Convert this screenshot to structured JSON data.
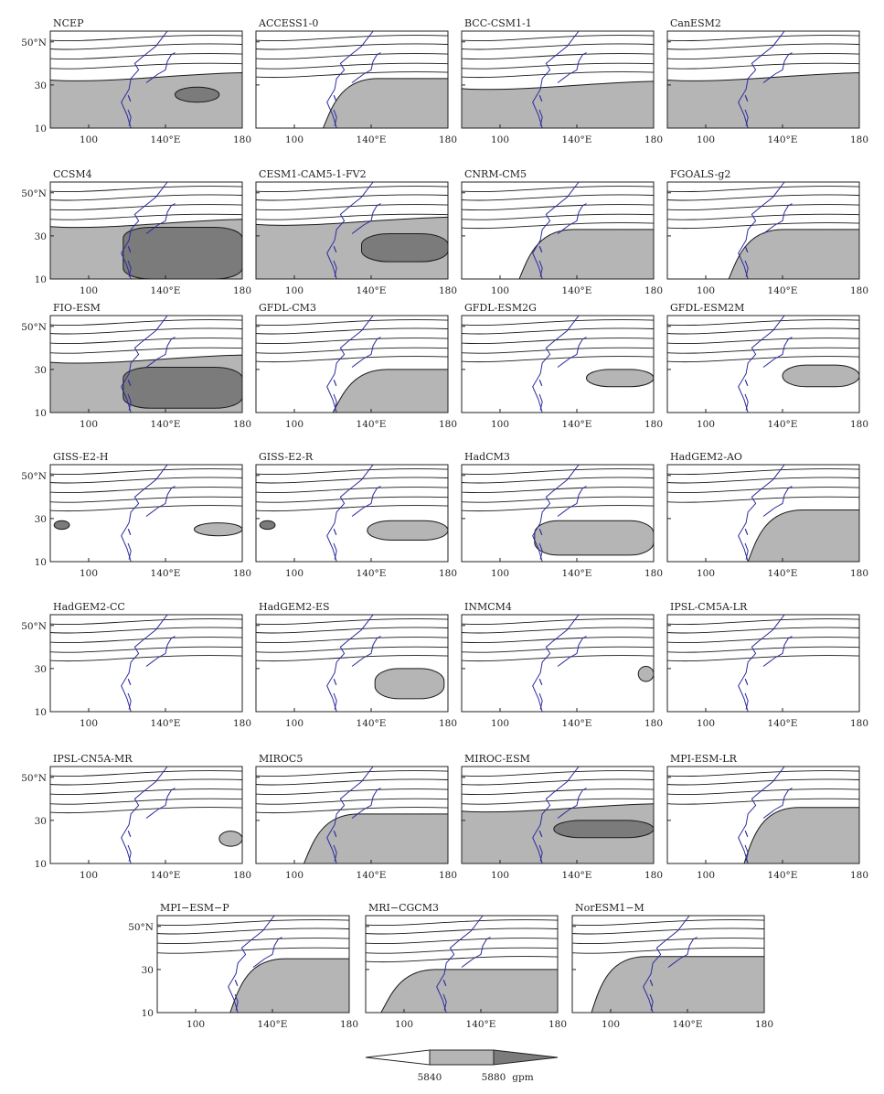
{
  "chart_data": {
    "type": "contour_map",
    "variable_units": "gpm",
    "x_ticks": [
      {
        "value": 100,
        "label": "100"
      },
      {
        "value": 140,
        "label": "140°E"
      },
      {
        "value": 180,
        "label": "180"
      }
    ],
    "y_ticks": [
      {
        "value": 10,
        "label": "10"
      },
      {
        "value": 30,
        "label": "30"
      },
      {
        "value": 50,
        "label": "50°N"
      }
    ],
    "xlim": [
      80,
      180
    ],
    "ylim": [
      10,
      55
    ],
    "colors": {
      "shade_5840": "#b5b5b5",
      "shade_5880": "#7b7b7b",
      "coastline": "#2b2b9e",
      "contour": "#1a1a1a"
    },
    "legend": {
      "levels": [
        "5840",
        "5880"
      ],
      "units": "gpm"
    },
    "panels": [
      {
        "name": "NCEP",
        "c5840": 34,
        "c5880": [
          145,
          168,
          22,
          29
        ]
      },
      {
        "name": "ACCESS1-0",
        "c5840": 33,
        "start_lon": 115
      },
      {
        "name": "BCC-CSM1-1",
        "c5840": 30
      },
      {
        "name": "CanESM2",
        "c5840": 34
      },
      {
        "name": "CCSM4",
        "c5840": 36,
        "c5880": [
          118,
          180,
          10,
          34
        ]
      },
      {
        "name": "CESM1-CAM5-1-FV2",
        "c5840": 37,
        "c5880": [
          135,
          180,
          18,
          31
        ]
      },
      {
        "name": "CNRM-CM5",
        "c5840": 33,
        "start_lon": 110
      },
      {
        "name": "FGOALS-g2",
        "c5840": 33,
        "start_lon": 112
      },
      {
        "name": "FIO-ESM",
        "c5840": 35,
        "c5880": [
          118,
          180,
          12,
          31
        ]
      },
      {
        "name": "GFDL-CM3",
        "c5840": 30,
        "start_lon": 120
      },
      {
        "name": "GFDL-ESM2G",
        "c5840": 30,
        "cell": [
          145,
          180,
          22,
          30
        ]
      },
      {
        "name": "GFDL-ESM2M",
        "c5840": 32,
        "cell": [
          140,
          180,
          22,
          32
        ]
      },
      {
        "name": "GISS-E2-H",
        "c5840": 28,
        "cell": [
          155,
          180,
          22,
          28
        ],
        "c5880": [
          82,
          90,
          25,
          29
        ]
      },
      {
        "name": "GISS-E2-R",
        "c5840": 29,
        "cell": [
          138,
          180,
          20,
          29
        ],
        "c5880": [
          82,
          90,
          25,
          29
        ]
      },
      {
        "name": "HadCM3",
        "c5840": 29,
        "cell": [
          118,
          180,
          13,
          29
        ]
      },
      {
        "name": "HadGEM2-AO",
        "c5840": 34,
        "start_lon": 122
      },
      {
        "name": "HadGEM2-CC",
        "c5840": 0
      },
      {
        "name": "HadGEM2-ES",
        "c5840": 30,
        "cell": [
          142,
          178,
          16,
          30
        ]
      },
      {
        "name": "INMCM4",
        "c5840": 31,
        "cell": [
          172,
          180,
          24,
          31
        ]
      },
      {
        "name": "IPSL-CM5A-LR",
        "c5840": 0
      },
      {
        "name": "IPSL-CN5A-MR",
        "c5840": 25,
        "cell": [
          168,
          180,
          18,
          25
        ]
      },
      {
        "name": "MIROC5",
        "c5840": 33,
        "start_lon": 105
      },
      {
        "name": "MIROC-ESM",
        "c5840": 36,
        "c5880": [
          128,
          180,
          22,
          30
        ]
      },
      {
        "name": "MPI-ESM-LR",
        "c5840": 36,
        "start_lon": 120
      },
      {
        "name": "MPI−ESM−P",
        "c5840": 35,
        "start_lon": 118
      },
      {
        "name": "MRI−CGCM3",
        "c5840": 30,
        "start_lon": 88
      },
      {
        "name": "NorESM1−M",
        "c5840": 36,
        "start_lon": 90
      }
    ]
  }
}
